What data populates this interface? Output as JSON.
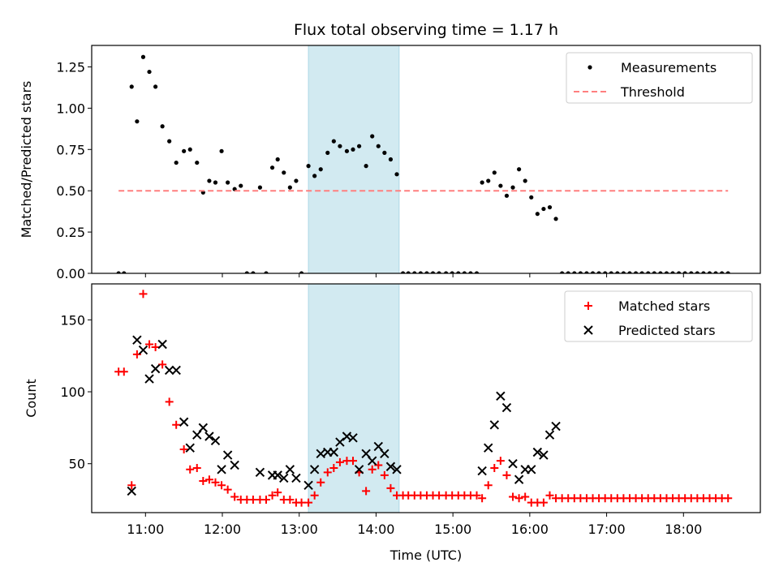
{
  "title": "Flux total observing time = 1.17 h",
  "xlabel": "Time (UTC)",
  "xticks": [
    {
      "x": 11,
      "label": "11:00"
    },
    {
      "x": 12,
      "label": "12:00"
    },
    {
      "x": 13,
      "label": "13:00"
    },
    {
      "x": 14,
      "label": "14:00"
    },
    {
      "x": 15,
      "label": "15:00"
    },
    {
      "x": 16,
      "label": "16:00"
    },
    {
      "x": 17,
      "label": "17:00"
    },
    {
      "x": 18,
      "label": "18:00"
    }
  ],
  "highlight_span": [
    13.12,
    14.3
  ],
  "colors": {
    "highlight": "#add8e6",
    "matched": "#ff0000",
    "predicted": "#000000",
    "threshold": "#ff7f7f",
    "measurements": "#000000"
  },
  "chart_data": [
    {
      "type": "scatter",
      "ylabel": "Matched/Predicted stars",
      "xlim": [
        10.3,
        19.0
      ],
      "ylim": [
        0.0,
        1.38
      ],
      "yticks": [
        0.0,
        0.25,
        0.5,
        0.75,
        1.0,
        1.25
      ],
      "ytick_labels": [
        "0.00",
        "0.25",
        "0.50",
        "0.75",
        "1.00",
        "1.25"
      ],
      "legend_position": "top-right",
      "series": [
        {
          "name": "Measurements",
          "kind": "points",
          "x": [
            10.65,
            10.72,
            10.82,
            10.89,
            10.97,
            11.05,
            11.13,
            11.22,
            11.31,
            11.4,
            11.5,
            11.58,
            11.67,
            11.75,
            11.83,
            11.91,
            11.99,
            12.07,
            12.16,
            12.24,
            12.32,
            12.4,
            12.49,
            12.57,
            12.65,
            12.72,
            12.8,
            12.88,
            12.96,
            13.03,
            13.12,
            13.2,
            13.28,
            13.37,
            13.45,
            13.53,
            13.62,
            13.7,
            13.78,
            13.87,
            13.95,
            14.03,
            14.11,
            14.19,
            14.27,
            14.35,
            14.42,
            14.5,
            14.58,
            14.66,
            14.74,
            14.82,
            14.91,
            14.99,
            15.07,
            15.15,
            15.23,
            15.31,
            15.38,
            15.46,
            15.54,
            15.62,
            15.7,
            15.78,
            15.86,
            15.94,
            16.02,
            16.1,
            16.18,
            16.26,
            16.34,
            16.42,
            16.5,
            16.58,
            16.66,
            16.74,
            16.82,
            16.9,
            16.98,
            17.06,
            17.14,
            17.22,
            17.3,
            17.38,
            17.46,
            17.54,
            17.62,
            17.7,
            17.78,
            17.86,
            17.94,
            18.02,
            18.1,
            18.18,
            18.26,
            18.34,
            18.42,
            18.5,
            18.58
          ],
          "y": [
            0.0,
            0.0,
            1.13,
            0.92,
            1.31,
            1.22,
            1.13,
            0.89,
            0.8,
            0.67,
            0.74,
            0.75,
            0.67,
            0.49,
            0.56,
            0.55,
            0.74,
            0.55,
            0.51,
            0.53,
            0.0,
            0.0,
            0.52,
            0.0,
            0.64,
            0.69,
            0.61,
            0.52,
            0.56,
            0.0,
            0.65,
            0.59,
            0.63,
            0.73,
            0.8,
            0.77,
            0.74,
            0.75,
            0.77,
            0.65,
            0.83,
            0.77,
            0.73,
            0.69,
            0.6,
            0.0,
            0.0,
            0.0,
            0.0,
            0.0,
            0.0,
            0.0,
            0.0,
            0.0,
            0.0,
            0.0,
            0.0,
            0.0,
            0.55,
            0.56,
            0.61,
            0.53,
            0.47,
            0.52,
            0.63,
            0.56,
            0.46,
            0.36,
            0.39,
            0.4,
            0.33,
            0.0,
            0.0,
            0.0,
            0.0,
            0.0,
            0.0,
            0.0,
            0.0,
            0.0,
            0.0,
            0.0,
            0.0,
            0.0,
            0.0,
            0.0,
            0.0,
            0.0,
            0.0,
            0.0,
            0.0,
            0.0,
            0.0,
            0.0,
            0.0,
            0.0,
            0.0,
            0.0,
            0.0
          ]
        },
        {
          "name": "Threshold",
          "kind": "dashed-line",
          "x": [
            10.65,
            18.58
          ],
          "y": [
            0.5,
            0.5
          ]
        }
      ]
    },
    {
      "type": "scatter",
      "ylabel": "Count",
      "xlim": [
        10.3,
        19.0
      ],
      "ylim": [
        16,
        175
      ],
      "yticks": [
        50,
        100,
        150
      ],
      "ytick_labels": [
        "50",
        "100",
        "150"
      ],
      "legend_position": "top-right",
      "series": [
        {
          "name": "Matched stars",
          "kind": "plus",
          "x": [
            10.65,
            10.72,
            10.82,
            10.89,
            10.97,
            11.05,
            11.13,
            11.22,
            11.31,
            11.4,
            11.5,
            11.58,
            11.67,
            11.75,
            11.83,
            11.91,
            11.99,
            12.07,
            12.16,
            12.24,
            12.32,
            12.4,
            12.49,
            12.57,
            12.65,
            12.72,
            12.8,
            12.88,
            12.96,
            13.03,
            13.12,
            13.2,
            13.28,
            13.37,
            13.45,
            13.53,
            13.62,
            13.7,
            13.78,
            13.87,
            13.95,
            14.03,
            14.11,
            14.19,
            14.27,
            14.35,
            14.42,
            14.5,
            14.58,
            14.66,
            14.74,
            14.82,
            14.91,
            14.99,
            15.07,
            15.15,
            15.23,
            15.31,
            15.38,
            15.46,
            15.54,
            15.62,
            15.7,
            15.78,
            15.86,
            15.94,
            16.02,
            16.1,
            16.18,
            16.26,
            16.34,
            16.42,
            16.5,
            16.58,
            16.66,
            16.74,
            16.82,
            16.9,
            16.98,
            17.06,
            17.14,
            17.22,
            17.3,
            17.38,
            17.46,
            17.54,
            17.62,
            17.7,
            17.78,
            17.86,
            17.94,
            18.02,
            18.1,
            18.18,
            18.26,
            18.34,
            18.42,
            18.5,
            18.58
          ],
          "y": [
            114,
            114,
            35,
            126,
            168,
            133,
            131,
            119,
            93,
            77,
            60,
            46,
            47,
            38,
            39,
            37,
            35,
            32,
            27,
            25,
            25,
            25,
            25,
            25,
            28,
            30,
            25,
            25,
            23,
            23,
            23,
            28,
            37,
            44,
            47,
            51,
            52,
            52,
            44,
            31,
            46,
            49,
            42,
            33,
            28,
            28,
            28,
            28,
            28,
            28,
            28,
            28,
            28,
            28,
            28,
            28,
            28,
            28,
            26,
            35,
            47,
            52,
            42,
            27,
            26,
            27,
            23,
            23,
            23,
            28,
            26,
            26,
            26,
            26,
            26,
            26,
            26,
            26,
            26,
            26,
            26,
            26,
            26,
            26,
            26,
            26,
            26,
            26,
            26,
            26,
            26,
            26,
            26,
            26,
            26,
            26,
            26,
            26,
            26
          ]
        },
        {
          "name": "Predicted stars",
          "kind": "cross",
          "x": [
            10.82,
            10.89,
            10.97,
            11.05,
            11.13,
            11.22,
            11.31,
            11.4,
            11.5,
            11.58,
            11.67,
            11.75,
            11.83,
            11.91,
            11.99,
            12.07,
            12.16,
            12.49,
            12.65,
            12.72,
            12.8,
            12.88,
            12.96,
            13.12,
            13.2,
            13.28,
            13.37,
            13.45,
            13.53,
            13.62,
            13.7,
            13.78,
            13.87,
            13.95,
            14.03,
            14.11,
            14.19,
            14.27,
            15.38,
            15.46,
            15.54,
            15.62,
            15.7,
            15.78,
            15.86,
            15.94,
            16.02,
            16.1,
            16.18,
            16.26,
            16.34
          ],
          "y": [
            31,
            136,
            129,
            109,
            116,
            133,
            115,
            115,
            79,
            61,
            70,
            75,
            69,
            66,
            46,
            56,
            49,
            44,
            42,
            42,
            40,
            46,
            40,
            35,
            46,
            57,
            58,
            58,
            65,
            69,
            68,
            46,
            57,
            52,
            62,
            57,
            48,
            46,
            45,
            61,
            77,
            97,
            89,
            50,
            39,
            46,
            46,
            58,
            56,
            70,
            76
          ]
        }
      ]
    }
  ]
}
